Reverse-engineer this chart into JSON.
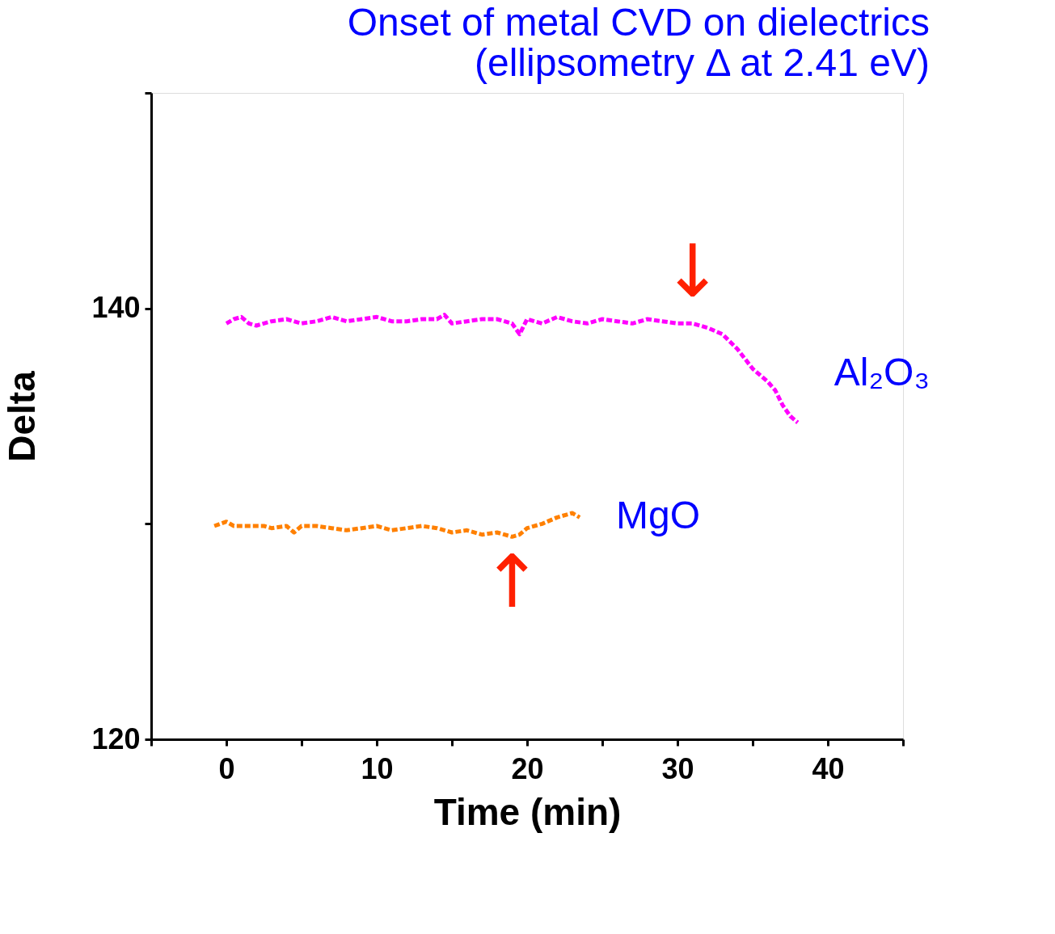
{
  "chart_data": {
    "type": "line",
    "title": [
      "Onset of metal CVD on dielectrics",
      "(ellipsometry Δ at 2.41 eV)"
    ],
    "xlabel": "Time (min)",
    "ylabel": "Delta",
    "xlim": [
      -5,
      45
    ],
    "ylim": [
      120,
      150
    ],
    "xticks": [
      {
        "value": -5,
        "label": null
      },
      0,
      {
        "value": 5,
        "label": null
      },
      10,
      {
        "value": 15,
        "label": null
      },
      20,
      {
        "value": 25,
        "label": null
      },
      30,
      {
        "value": 35,
        "label": null
      },
      40,
      {
        "value": 45,
        "label": null
      }
    ],
    "yticks": [
      120,
      {
        "value": 130,
        "label": null
      },
      140,
      {
        "value": 150,
        "label": null
      }
    ],
    "grid": false,
    "line_style": "dashed",
    "marker": "none",
    "series": [
      {
        "name": "Al₂O₃",
        "color": "#ff00ff",
        "x": [
          0,
          0.5,
          1,
          1.5,
          2,
          3,
          4,
          5,
          6,
          7,
          8,
          9,
          10,
          11,
          12,
          13,
          14,
          14.5,
          15,
          16,
          17,
          18,
          19,
          19.5,
          20,
          21,
          22,
          23,
          24,
          25,
          26,
          27,
          28,
          29,
          30,
          31,
          32,
          33,
          34,
          35,
          36,
          36.5,
          37,
          37.5,
          38
        ],
        "values": [
          139.3,
          139.5,
          139.6,
          139.3,
          139.2,
          139.4,
          139.5,
          139.3,
          139.4,
          139.6,
          139.4,
          139.5,
          139.6,
          139.4,
          139.4,
          139.5,
          139.5,
          139.7,
          139.3,
          139.4,
          139.5,
          139.5,
          139.3,
          138.8,
          139.5,
          139.3,
          139.6,
          139.4,
          139.3,
          139.5,
          139.4,
          139.3,
          139.5,
          139.4,
          139.3,
          139.3,
          139.1,
          138.8,
          138.1,
          137.2,
          136.6,
          136.2,
          135.5,
          135.0,
          134.7
        ]
      },
      {
        "name": "MgO",
        "color": "#ff8000",
        "x": [
          -0.8,
          0,
          0.5,
          1,
          2.5,
          3,
          4,
          4.5,
          5,
          6,
          7,
          8,
          9,
          10,
          11,
          12,
          13,
          14,
          15,
          16,
          17,
          18,
          18.5,
          19,
          19.5,
          20,
          21,
          22,
          23,
          23.5
        ],
        "values": [
          129.9,
          130.1,
          129.9,
          129.9,
          129.9,
          129.8,
          129.9,
          129.6,
          129.9,
          129.9,
          129.8,
          129.7,
          129.8,
          129.9,
          129.7,
          129.8,
          129.9,
          129.8,
          129.6,
          129.7,
          129.5,
          129.6,
          129.5,
          129.4,
          129.5,
          129.8,
          130.0,
          130.3,
          130.5,
          130.3
        ]
      }
    ],
    "annotations": [
      {
        "text": "↓",
        "x": 31,
        "y": 139.3
      },
      {
        "text": "↑",
        "x": 19,
        "y": 129.4
      }
    ]
  }
}
